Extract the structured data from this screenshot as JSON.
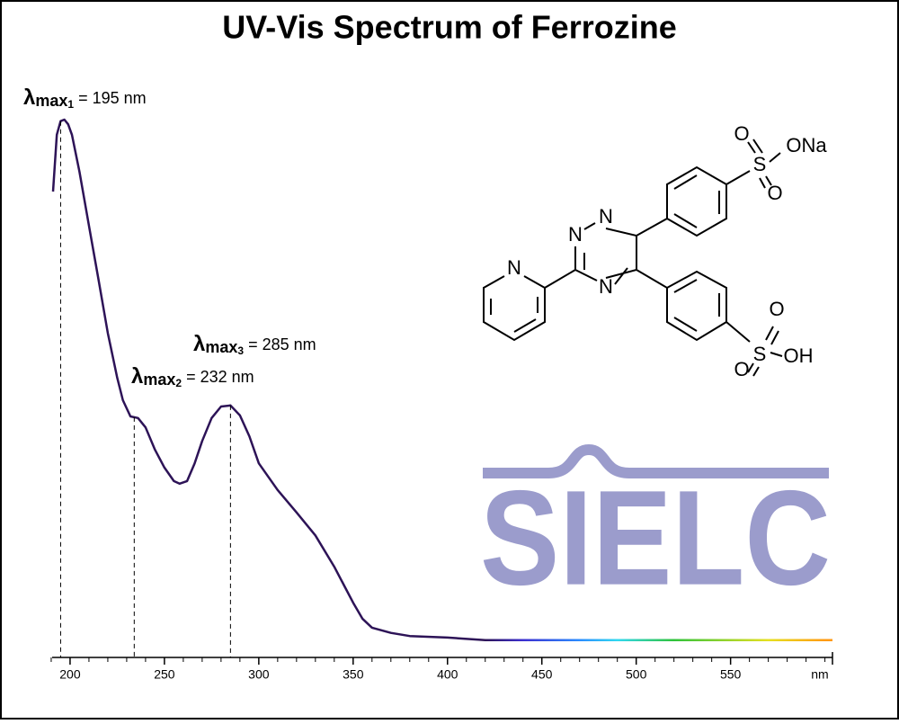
{
  "chart_data": {
    "type": "line",
    "title": "UV-Vis Spectrum of Ferrozine",
    "x_unit": "nm",
    "xlim": [
      190.5,
      604
    ],
    "xticks": [
      200,
      250,
      300,
      350,
      400,
      450,
      500,
      550
    ],
    "xminorticks": [
      190,
      210,
      220,
      230,
      240,
      260,
      270,
      280,
      290,
      310,
      320,
      330,
      340,
      360,
      370,
      380,
      390,
      410,
      420,
      430,
      440,
      460,
      470,
      480,
      490,
      510,
      520,
      530,
      540,
      560,
      570,
      580,
      590,
      600
    ],
    "ylim": [
      0,
      1
    ],
    "x": [
      191,
      193,
      195,
      197,
      199,
      201,
      205,
      210,
      215,
      220,
      225,
      228,
      232,
      236,
      240,
      245,
      250,
      255,
      258,
      262,
      266,
      270,
      275,
      280,
      285,
      290,
      295,
      300,
      310,
      320,
      330,
      340,
      350,
      355,
      360,
      370,
      380,
      400,
      420,
      450,
      500,
      550,
      604
    ],
    "series": [
      {
        "color": "#2d1357",
        "values": [
          0.862,
          0.971,
          0.997,
          1.0,
          0.991,
          0.971,
          0.9,
          0.797,
          0.695,
          0.591,
          0.505,
          0.462,
          0.431,
          0.428,
          0.41,
          0.367,
          0.333,
          0.307,
          0.302,
          0.307,
          0.341,
          0.384,
          0.428,
          0.45,
          0.452,
          0.433,
          0.393,
          0.341,
          0.29,
          0.247,
          0.203,
          0.143,
          0.074,
          0.043,
          0.026,
          0.016,
          0.01,
          0.007,
          0.002,
          0.002,
          0.002,
          0.002,
          0.002
        ]
      }
    ],
    "spectrum_colors": [
      {
        "x": 420,
        "color": "#2d1357"
      },
      {
        "x": 440,
        "color": "#3b2fd0"
      },
      {
        "x": 470,
        "color": "#2a8cff"
      },
      {
        "x": 490,
        "color": "#30d8f0"
      },
      {
        "x": 520,
        "color": "#2fc23a"
      },
      {
        "x": 570,
        "color": "#e6e020"
      },
      {
        "x": 600,
        "color": "#ff9a10"
      }
    ],
    "annotations": [
      {
        "symbol": "λ",
        "sub": "max",
        "index": "1",
        "text": "= 195 nm",
        "x": 195
      },
      {
        "symbol": "λ",
        "sub": "max",
        "index": "2",
        "text": "= 232 nm",
        "x": 234
      },
      {
        "symbol": "λ",
        "sub": "max",
        "index": "3",
        "text": "= 285 nm",
        "x": 285
      }
    ]
  },
  "structure": {
    "labels": [
      "N",
      "N",
      "N",
      "N",
      "O",
      "S",
      "O",
      "ONa",
      "O",
      "S",
      "O",
      "OH"
    ]
  },
  "logo": {
    "text": "SIELC"
  }
}
